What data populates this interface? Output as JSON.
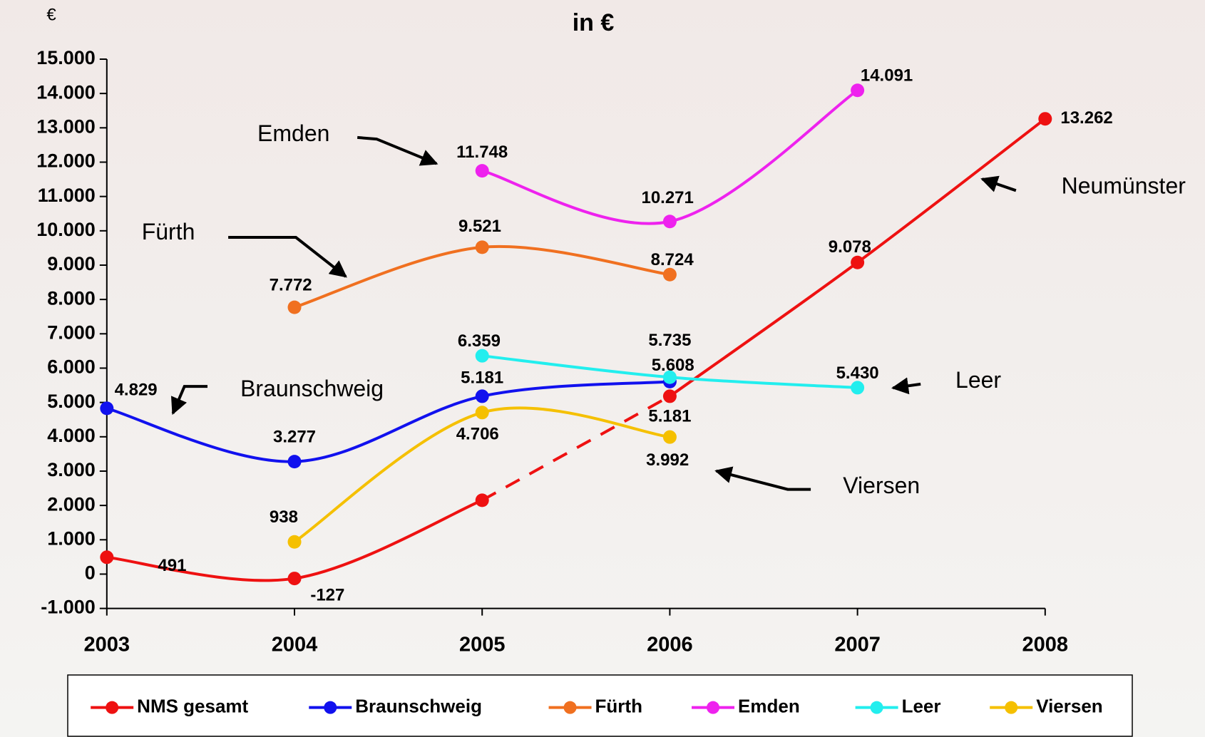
{
  "chart_data": {
    "type": "line",
    "title": "in €",
    "unit_label": "€",
    "categories": [
      "2003",
      "2004",
      "2005",
      "2006",
      "2007",
      "2008"
    ],
    "ylim": [
      -1000,
      15000
    ],
    "yticks": [
      {
        "value": -1000,
        "label": "-1.000"
      },
      0,
      {
        "value": 1000,
        "label": "1.000"
      },
      {
        "value": 2000,
        "label": "2.000"
      },
      {
        "value": 3000,
        "label": "3.000"
      },
      {
        "value": 4000,
        "label": "4.000"
      },
      {
        "value": 5000,
        "label": "5.000"
      },
      {
        "value": 6000,
        "label": "6.000"
      },
      {
        "value": 7000,
        "label": "7.000"
      },
      {
        "value": 8000,
        "label": "8.000"
      },
      {
        "value": 9000,
        "label": "9.000"
      },
      {
        "value": 10000,
        "label": "10.000"
      },
      {
        "value": 11000,
        "label": "11.000"
      },
      {
        "value": 12000,
        "label": "12.000"
      },
      {
        "value": 13000,
        "label": "13.000"
      },
      {
        "value": 14000,
        "label": "14.000"
      },
      {
        "value": 15000,
        "label": "15.000"
      }
    ],
    "grid": false,
    "smooth": true,
    "series": [
      {
        "name": "NMS gesamt",
        "color": "#ee1111",
        "values": [
          491,
          -127,
          2150,
          5181,
          9078,
          13262
        ],
        "value_labels": [
          "491",
          "-127",
          null,
          "5.181",
          "9.078",
          "13.262"
        ],
        "dashed_segment": [
          2,
          3
        ]
      },
      {
        "name": "Braunschweig",
        "color": "#1111ee",
        "values": [
          4829,
          3277,
          5181,
          5608,
          null,
          null
        ],
        "value_labels": [
          "4.829",
          "3.277",
          "5.181",
          "5.608",
          null,
          null
        ]
      },
      {
        "name": "Fürth",
        "color": "#f07020",
        "values": [
          null,
          7772,
          9521,
          8724,
          null,
          null
        ],
        "value_labels": [
          null,
          "7.772",
          "9.521",
          "8.724",
          null,
          null
        ]
      },
      {
        "name": "Emden",
        "color": "#ee22ee",
        "values": [
          null,
          null,
          11748,
          10271,
          14091,
          null
        ],
        "value_labels": [
          null,
          null,
          "11.748",
          "10.271",
          "14.091",
          null
        ]
      },
      {
        "name": "Leer",
        "color": "#22eeee",
        "values": [
          null,
          null,
          6359,
          5735,
          5430,
          null
        ],
        "value_labels": [
          null,
          null,
          "6.359",
          "5.735",
          "5.430",
          null
        ]
      },
      {
        "name": "Viersen",
        "color": "#f5c000",
        "values": [
          null,
          938,
          4706,
          3992,
          null,
          null
        ],
        "value_labels": [
          null,
          "938",
          "4.706",
          "3.992",
          null,
          null
        ]
      }
    ],
    "annotations": [
      "Emden",
      "Fürth",
      "Braunschweig",
      "Neumünster",
      "Leer",
      "Viersen"
    ]
  }
}
